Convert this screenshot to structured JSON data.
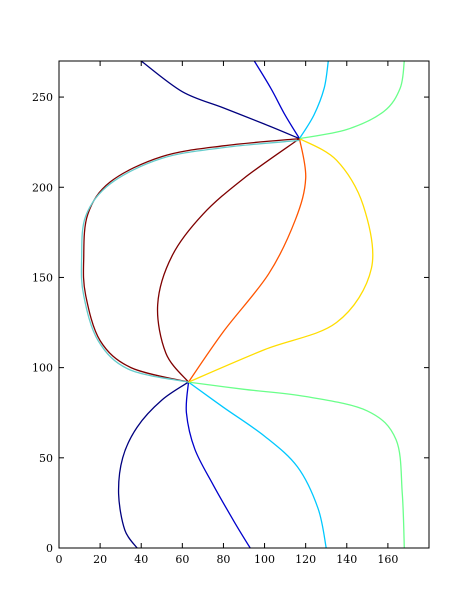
{
  "chart_data": {
    "type": "line",
    "title": "",
    "xlabel": "",
    "ylabel": "",
    "xlim": [
      0,
      180
    ],
    "ylim": [
      0,
      270
    ],
    "grid": false,
    "xticks": [
      0,
      20,
      40,
      60,
      80,
      100,
      120,
      140,
      160
    ],
    "yticks": [
      0,
      50,
      100,
      150,
      200,
      250
    ],
    "series": [
      {
        "color": "#00007f",
        "points": [
          [
            38,
            0
          ],
          [
            32,
            10
          ],
          [
            29,
            30
          ],
          [
            31,
            50
          ],
          [
            38,
            67
          ],
          [
            50,
            82
          ],
          [
            63,
            92
          ]
        ]
      },
      {
        "color": "#0000cc",
        "points": [
          [
            63,
            92
          ],
          [
            62,
            75
          ],
          [
            66,
            55
          ],
          [
            75,
            35
          ],
          [
            85,
            15
          ],
          [
            93,
            0
          ]
        ]
      },
      {
        "color": "#00c8ff",
        "points": [
          [
            63,
            92
          ],
          [
            80,
            78
          ],
          [
            100,
            62
          ],
          [
            116,
            45
          ],
          [
            126,
            22
          ],
          [
            130,
            0
          ]
        ]
      },
      {
        "color": "#6aff8a",
        "points": [
          [
            63,
            92
          ],
          [
            90,
            88
          ],
          [
            120,
            84
          ],
          [
            150,
            76
          ],
          [
            164,
            60
          ],
          [
            167,
            30
          ],
          [
            168,
            0
          ]
        ]
      },
      {
        "color": "#7f0000",
        "points": [
          [
            63,
            92
          ],
          [
            52,
            108
          ],
          [
            48,
            135
          ],
          [
            55,
            162
          ],
          [
            70,
            185
          ],
          [
            90,
            205
          ],
          [
            117,
            227
          ]
        ]
      },
      {
        "color": "#ff5500",
        "points": [
          [
            63,
            92
          ],
          [
            80,
            120
          ],
          [
            102,
            152
          ],
          [
            115,
            182
          ],
          [
            120,
            205
          ],
          [
            117,
            227
          ]
        ]
      },
      {
        "color": "#ffdd00",
        "points": [
          [
            63,
            92
          ],
          [
            100,
            110
          ],
          [
            135,
            125
          ],
          [
            152,
            155
          ],
          [
            148,
            190
          ],
          [
            135,
            215
          ],
          [
            117,
            227
          ]
        ]
      },
      {
        "color": "#00007f",
        "points": [
          [
            117,
            227
          ],
          [
            100,
            235
          ],
          [
            80,
            244
          ],
          [
            60,
            253
          ],
          [
            40,
            270
          ]
        ]
      },
      {
        "color": "#0000cc",
        "points": [
          [
            117,
            227
          ],
          [
            110,
            240
          ],
          [
            103,
            255
          ],
          [
            95,
            270
          ]
        ]
      },
      {
        "color": "#00c8ff",
        "points": [
          [
            117,
            227
          ],
          [
            124,
            240
          ],
          [
            129,
            255
          ],
          [
            131,
            270
          ]
        ]
      },
      {
        "color": "#6aff8a",
        "points": [
          [
            117,
            227
          ],
          [
            140,
            232
          ],
          [
            158,
            242
          ],
          [
            166,
            255
          ],
          [
            168,
            270
          ]
        ]
      },
      {
        "color": "#7f0000",
        "points": [
          [
            117,
            227
          ],
          [
            80,
            223
          ],
          [
            50,
            217
          ],
          [
            25,
            203
          ],
          [
            14,
            185
          ],
          [
            12,
            160
          ],
          [
            13,
            140
          ],
          [
            20,
            115
          ],
          [
            35,
            100
          ],
          [
            63,
            92
          ]
        ],
        "stepped": true
      },
      {
        "color": "#66cccc",
        "points": [
          [
            117,
            226
          ],
          [
            80,
            222
          ],
          [
            50,
            216
          ],
          [
            25,
            202
          ],
          [
            13,
            184
          ],
          [
            11,
            160
          ],
          [
            12,
            140
          ],
          [
            19,
            115
          ],
          [
            34,
            99
          ],
          [
            63,
            92
          ]
        ],
        "stepped": true
      }
    ]
  }
}
